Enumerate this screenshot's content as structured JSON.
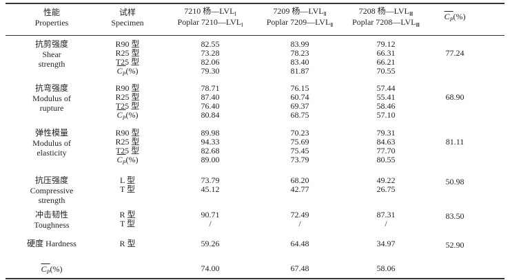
{
  "header": {
    "property": {
      "zh": "性能",
      "en": "Properties"
    },
    "specimen": {
      "zh": "试样",
      "en": "Specimen"
    },
    "groups": [
      {
        "zh": "7210 杨—LVL",
        "zh_sub": "Ⅰ",
        "en": "Poplar 7210—LVL",
        "en_sub": "Ⅰ"
      },
      {
        "zh": "7209 杨—LVL",
        "zh_sub": "Ⅱ",
        "en": "Poplar 7209—LVL",
        "en_sub": "Ⅱ"
      },
      {
        "zh": "7208 杨—LVL",
        "zh_sub": "Ⅲ",
        "en": "Poplar 7208—LVL",
        "en_sub": "Ⅲ"
      }
    ]
  },
  "mean_label": {
    "symbol": "C",
    "subscript": "P",
    "unit": "(%)"
  },
  "rows": [
    {
      "property": {
        "zh": "抗剪强度",
        "en": [
          "Shear",
          "strength"
        ]
      },
      "specimens": [
        {
          "name": "R90 型",
          "values": [
            "82.55",
            "83.99",
            "79.12"
          ]
        },
        {
          "name": "R25 型",
          "values": [
            "73.28",
            "78.23",
            "66.31"
          ]
        },
        {
          "name": "T25 型",
          "values": [
            "82.06",
            "83.40",
            "66.21"
          ]
        }
      ],
      "mean_values": [
        "79.30",
        "81.87",
        "70.55"
      ],
      "overall": "77.24"
    },
    {
      "property": {
        "zh": "抗弯强度",
        "en": [
          "Modulus of",
          "rupture"
        ]
      },
      "specimens": [
        {
          "name": "R90 型",
          "values": [
            "78.71",
            "76.15",
            "57.44"
          ]
        },
        {
          "name": "R25 型",
          "values": [
            "87.40",
            "60.74",
            "55.41"
          ]
        },
        {
          "name": "T25 型",
          "values": [
            "76.40",
            "69.37",
            "58.46"
          ]
        }
      ],
      "mean_values": [
        "80.84",
        "68.75",
        "57.10"
      ],
      "overall": "68.90"
    },
    {
      "property": {
        "zh": "弹性模量",
        "en": [
          "Modulus of",
          "elasticity"
        ]
      },
      "specimens": [
        {
          "name": "R90 型",
          "values": [
            "89.98",
            "70.23",
            "79.31"
          ]
        },
        {
          "name": "R25 型",
          "values": [
            "94.33",
            "75.69",
            "84.63"
          ]
        },
        {
          "name": "T25 型",
          "values": [
            "82.68",
            "75.45",
            "77.70"
          ]
        }
      ],
      "mean_values": [
        "89.00",
        "73.79",
        "80.55"
      ],
      "overall": "81.11"
    },
    {
      "property": {
        "zh": "抗压强度",
        "en": [
          "Compressive",
          "strength"
        ]
      },
      "specimens": [
        {
          "name": "L 型",
          "values": [
            "73.79",
            "68.20",
            "49.22"
          ]
        },
        {
          "name": "T 型",
          "values": [
            "45.12",
            "42.77",
            "26.75"
          ]
        }
      ],
      "overall": "50.98"
    },
    {
      "property": {
        "zh": "冲击韧性",
        "en": [
          "Toughness"
        ]
      },
      "specimens": [
        {
          "name": "R 型",
          "values": [
            "90.71",
            "72.49",
            "87.31"
          ]
        },
        {
          "name": "T 型",
          "values": [
            "/",
            "/",
            "/"
          ]
        }
      ],
      "overall": "83.50"
    },
    {
      "property": {
        "zh": "硬度 Hardness",
        "en": []
      },
      "specimens": [
        {
          "name": "R 型",
          "values": [
            "59.26",
            "64.48",
            "34.97"
          ]
        }
      ],
      "overall": "52.90"
    }
  ],
  "total": [
    "74.00",
    "67.48",
    "58.06"
  ]
}
